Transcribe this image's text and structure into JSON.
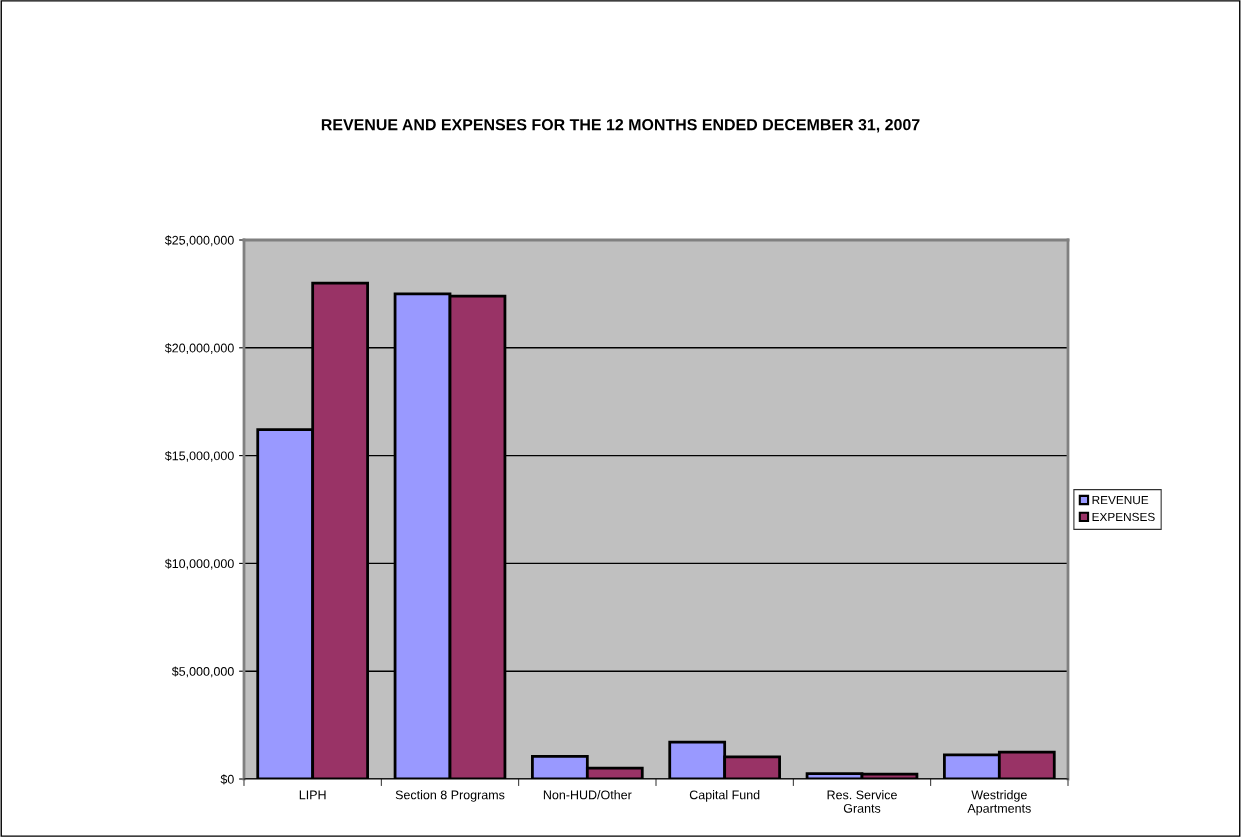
{
  "chart_data": {
    "type": "bar",
    "title": "REVENUE AND EXPENSES FOR THE 12 MONTHS ENDED DECEMBER 31, 2007",
    "categories": [
      "LIPH",
      "Section 8 Programs",
      "Non-HUD/Other",
      "Capital Fund",
      "Res. Service\nGrants",
      "Westridge\nApartments"
    ],
    "series": [
      {
        "name": "REVENUE",
        "color": "#9999ff",
        "values": [
          16200000,
          22500000,
          1050000,
          1710000,
          250000,
          1120000
        ]
      },
      {
        "name": "EXPENSES",
        "color": "#993366",
        "values": [
          23000000,
          22400000,
          500000,
          1030000,
          230000,
          1250000
        ]
      }
    ],
    "ylim": [
      0,
      25000000
    ],
    "yticks": [
      {
        "value": 0,
        "label": "$0"
      },
      {
        "value": 5000000,
        "label": "$5,000,000"
      },
      {
        "value": 10000000,
        "label": "$10,000,000"
      },
      {
        "value": 15000000,
        "label": "$15,000,000"
      },
      {
        "value": 20000000,
        "label": "$20,000,000"
      },
      {
        "value": 25000000,
        "label": "$25,000,000"
      }
    ],
    "grid": "y",
    "legend": "right"
  }
}
